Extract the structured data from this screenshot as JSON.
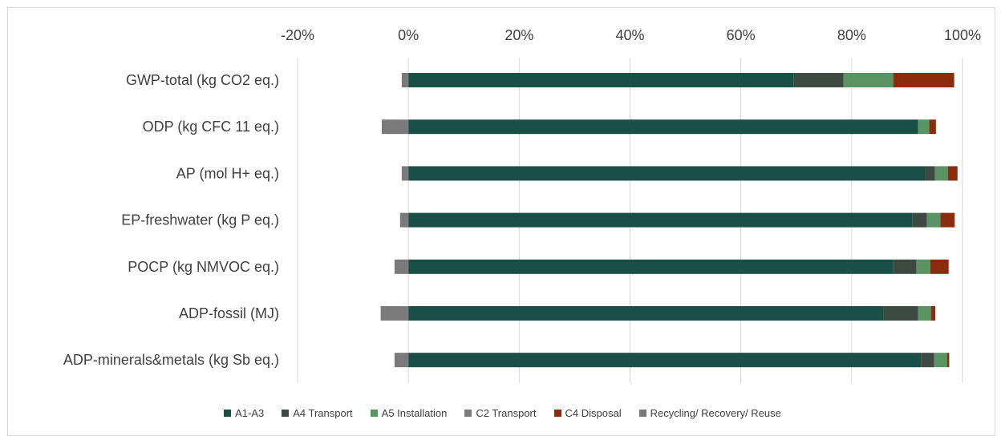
{
  "chart_data": {
    "type": "bar",
    "orientation": "horizontal",
    "stacked": true,
    "categories": [
      "GWP-total (kg CO2 eq.)",
      "ODP (kg CFC 11 eq.)",
      "AP (mol H+ eq.)",
      "EP-freshwater (kg P eq.)",
      "POCP (kg NMVOC eq.)",
      "ADP-fossil (MJ)",
      "ADP-minerals&metals (kg Sb eq.)"
    ],
    "xlim": [
      -20,
      100
    ],
    "ticks": [
      "-20%",
      "0%",
      "20%",
      "40%",
      "60%",
      "80%",
      "100%"
    ],
    "tick_values": [
      -20,
      0,
      20,
      40,
      60,
      80,
      100
    ],
    "axis_position": "top",
    "grid": true,
    "legend_position": "bottom",
    "series": [
      {
        "name": "A1-A3",
        "color": "#1a4f45",
        "values": [
          69.5,
          92.0,
          93.2,
          91.0,
          87.5,
          85.8,
          92.5
        ]
      },
      {
        "name": "A4 Transport",
        "color": "#3d4a41",
        "values": [
          9.0,
          0.0,
          1.8,
          2.6,
          4.2,
          6.2,
          2.4
        ]
      },
      {
        "name": "A5  Installation",
        "color": "#5a9463",
        "values": [
          9.0,
          2.0,
          2.4,
          2.4,
          2.5,
          2.3,
          2.3
        ]
      },
      {
        "name": "C2  Transport",
        "color": "#7b7b7b",
        "values": [
          0,
          0,
          0,
          0,
          0,
          0,
          0
        ]
      },
      {
        "name": "C4  Disposal",
        "color": "#8b2c0e",
        "values": [
          11.0,
          1.2,
          1.7,
          2.6,
          3.3,
          0.8,
          0.4
        ]
      },
      {
        "name": "Recycling/ Recovery/ Reuse",
        "color": "#7a7a7a",
        "values": [
          -1.2,
          -4.8,
          -1.2,
          -1.5,
          -2.5,
          -5.0,
          -2.5
        ]
      }
    ]
  }
}
